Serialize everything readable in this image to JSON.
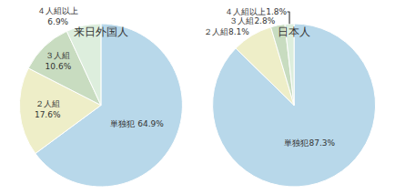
{
  "chart_data": [
    {
      "type": "pie",
      "title": "来日外国人",
      "categories": [
        "単独犯",
        "２人組",
        "３人組",
        "４人組以上"
      ],
      "values": [
        64.9,
        17.6,
        10.6,
        6.9
      ],
      "value_labels": [
        "単独犯 64.9%",
        "２人組\n17.6%",
        "３人組\n10.6%",
        "４人組以上\n6.9%"
      ],
      "colors": [
        "#b8d8ea",
        "#eeeec8",
        "#c8dcc0",
        "#ddeedd"
      ],
      "data_labels": true
    },
    {
      "type": "pie",
      "title": "日本人",
      "categories": [
        "単独犯",
        "２人組",
        "３人組",
        "４人組以上"
      ],
      "values": [
        87.3,
        8.1,
        2.8,
        1.8
      ],
      "value_labels": [
        "単独犯87.3%",
        "２人組8.1%",
        "３人組2.8%",
        "４人組以上1.8%"
      ],
      "colors": [
        "#b8d8ea",
        "#eeeec8",
        "#c8dcc0",
        "#ddeedd"
      ],
      "data_labels": true
    }
  ]
}
